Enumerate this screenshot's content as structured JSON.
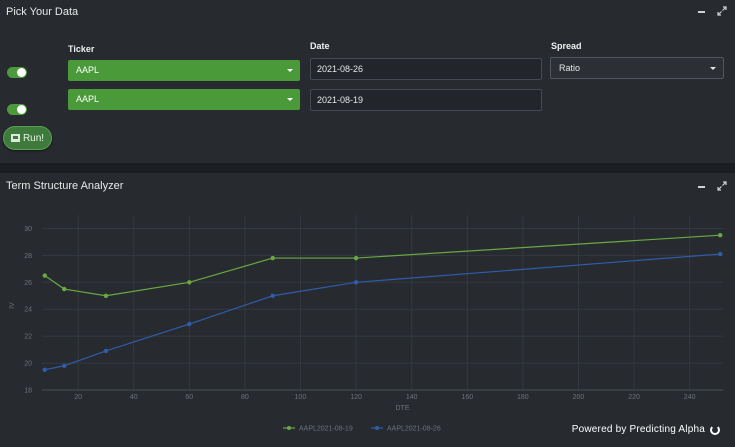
{
  "top_panel": {
    "title": "Pick Your Data",
    "labels": {
      "ticker": "Ticker",
      "date": "Date",
      "spread": "Spread"
    },
    "rows": [
      {
        "enabled": true,
        "ticker": "AAPL",
        "date": "2021-08-26"
      },
      {
        "enabled": true,
        "ticker": "AAPL",
        "date": "2021-08-19"
      }
    ],
    "spread_value": "Ratio",
    "run_label": "Run!",
    "toggle_color": "#4d9a3c",
    "select_color": "#4a9a3a"
  },
  "bottom_panel": {
    "title": "Term Structure Analyzer"
  },
  "branding": {
    "text": "Powered by Predicting Alpha"
  },
  "chart_data": {
    "type": "line",
    "xlabel": "DTE",
    "ylabel": "IV",
    "xlim": [
      7,
      252
    ],
    "ylim": [
      18,
      31
    ],
    "xticks": [
      20,
      40,
      60,
      80,
      100,
      120,
      140,
      160,
      180,
      200,
      220,
      240
    ],
    "yticks": [
      18,
      20,
      22,
      24,
      26,
      28,
      30
    ],
    "legend_position": "bottom-center",
    "grid": true,
    "series": [
      {
        "name": "AAPL2021-08-19",
        "color": "#6aa842",
        "x": [
          8,
          15,
          30,
          60,
          90,
          120,
          251
        ],
        "y": [
          26.5,
          25.5,
          25.0,
          26.0,
          27.8,
          27.8,
          29.5
        ]
      },
      {
        "name": "AAPL2021-08-26",
        "color": "#2f5cab",
        "x": [
          8,
          15,
          30,
          60,
          90,
          120,
          251
        ],
        "y": [
          19.5,
          19.8,
          20.9,
          22.9,
          25.0,
          26.0,
          28.1
        ]
      }
    ]
  }
}
